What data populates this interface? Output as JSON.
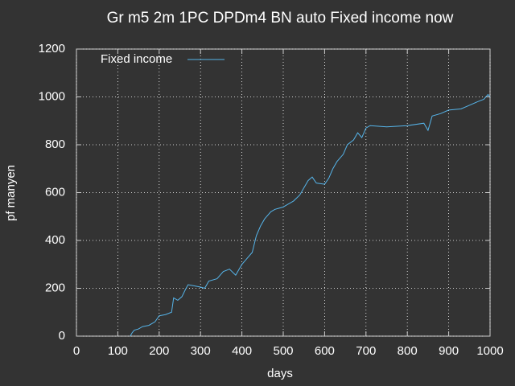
{
  "chart_data": {
    "type": "line",
    "title": "Gr m5 2m 1PC DPDm4 BN auto Fixed income now",
    "x_label": "days",
    "y_label": "pf manyen",
    "x": [
      130,
      135,
      140,
      150,
      160,
      175,
      190,
      200,
      215,
      230,
      235,
      245,
      255,
      265,
      270,
      285,
      300,
      310,
      320,
      340,
      355,
      370,
      385,
      400,
      410,
      425,
      435,
      445,
      455,
      470,
      480,
      490,
      500,
      515,
      525,
      540,
      550,
      560,
      570,
      580,
      600,
      610,
      620,
      630,
      645,
      655,
      670,
      680,
      690,
      700,
      710,
      750,
      800,
      840,
      850,
      860,
      880,
      900,
      930,
      950,
      970,
      985,
      995,
      1000
    ],
    "series": [
      {
        "name": "Fixed income",
        "color": "#56b4e9",
        "values": [
          0,
          15,
          25,
          30,
          40,
          45,
          60,
          85,
          90,
          100,
          160,
          150,
          165,
          200,
          215,
          210,
          205,
          200,
          230,
          240,
          270,
          280,
          255,
          300,
          320,
          350,
          420,
          460,
          490,
          520,
          530,
          535,
          540,
          555,
          565,
          590,
          620,
          650,
          665,
          640,
          635,
          660,
          700,
          730,
          760,
          800,
          820,
          850,
          830,
          870,
          880,
          875,
          880,
          890,
          860,
          920,
          930,
          945,
          950,
          965,
          980,
          990,
          1010,
          1000
        ]
      }
    ],
    "xlim": [
      0,
      1000
    ],
    "xticks": [
      0,
      100,
      200,
      300,
      400,
      500,
      600,
      700,
      800,
      900,
      1000
    ],
    "ylim": [
      0,
      1200
    ],
    "yticks": [
      0,
      200,
      400,
      600,
      800,
      1000,
      1200
    ],
    "grid": true,
    "legend": "top-left"
  }
}
